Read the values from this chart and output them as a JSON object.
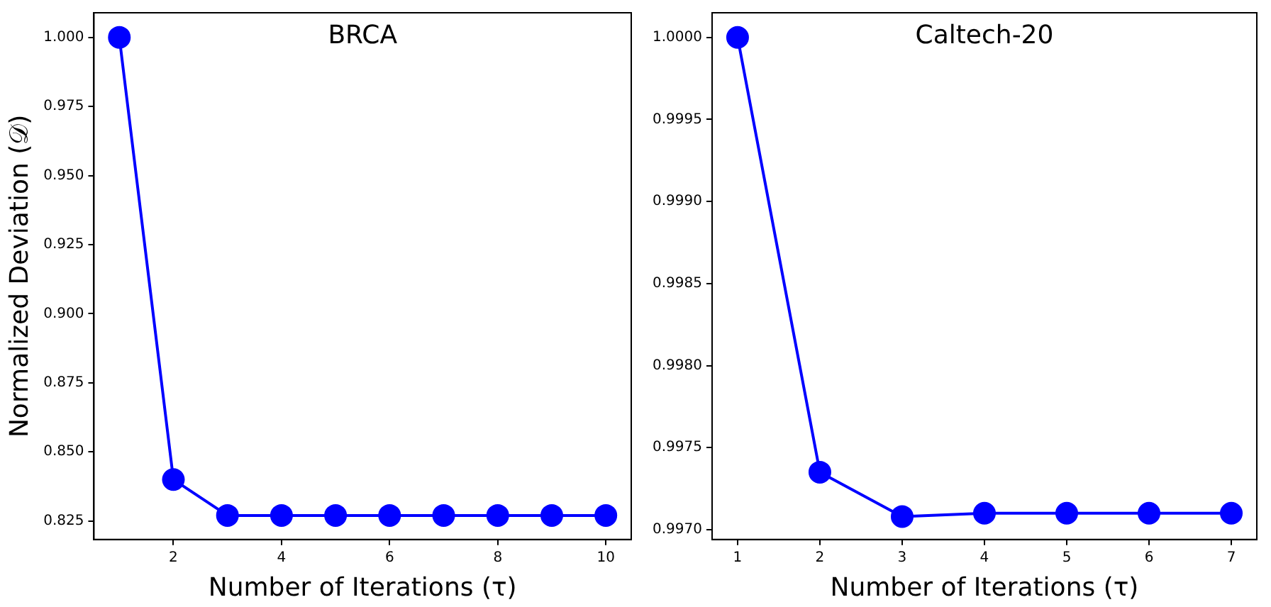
{
  "chart_data": [
    {
      "type": "line",
      "title": "BRCA",
      "xlabel": "Number of Iterations (τ)",
      "ylabel": "Normalized Deviation (𝒟)",
      "x": [
        1,
        2,
        3,
        4,
        5,
        6,
        7,
        8,
        9,
        10
      ],
      "series": [
        {
          "color": "#0000ff",
          "values": [
            1.0,
            0.84,
            0.827,
            0.827,
            0.827,
            0.827,
            0.827,
            0.827,
            0.827,
            0.827
          ]
        }
      ],
      "xlim": [
        0.53,
        10.47
      ],
      "xticks": [
        2,
        4,
        6,
        8,
        10
      ],
      "ylim": [
        0.8183,
        1.0089
      ],
      "yticks": [
        {
          "value": 0.825,
          "label": "0.825"
        },
        {
          "value": 0.85,
          "label": "0.850"
        },
        {
          "value": 0.875,
          "label": "0.875"
        },
        {
          "value": 0.9,
          "label": "0.900"
        },
        {
          "value": 0.925,
          "label": "0.925"
        },
        {
          "value": 0.95,
          "label": "0.950"
        },
        {
          "value": 0.975,
          "label": "0.975"
        },
        {
          "value": 1.0,
          "label": "1.000"
        }
      ],
      "marker": "circle",
      "grid": false,
      "legend": false
    },
    {
      "type": "line",
      "title": "Caltech-20",
      "xlabel": "Number of Iterations (τ)",
      "x": [
        1,
        2,
        3,
        4,
        5,
        6,
        7
      ],
      "series": [
        {
          "color": "#0000ff",
          "values": [
            1.0,
            0.99735,
            0.99708,
            0.9971,
            0.9971,
            0.9971,
            0.9971
          ]
        }
      ],
      "xlim": [
        0.69,
        7.31
      ],
      "xticks": [
        1,
        2,
        3,
        4,
        5,
        6,
        7
      ],
      "ylim": [
        0.99694,
        1.00015
      ],
      "yticks": [
        {
          "value": 0.997,
          "label": "0.9970"
        },
        {
          "value": 0.9975,
          "label": "0.9975"
        },
        {
          "value": 0.998,
          "label": "0.9980"
        },
        {
          "value": 0.9985,
          "label": "0.9985"
        },
        {
          "value": 0.999,
          "label": "0.9990"
        },
        {
          "value": 0.9995,
          "label": "0.9995"
        },
        {
          "value": 1.0,
          "label": "1.0000"
        }
      ],
      "marker": "circle",
      "grid": false,
      "legend": false
    }
  ]
}
